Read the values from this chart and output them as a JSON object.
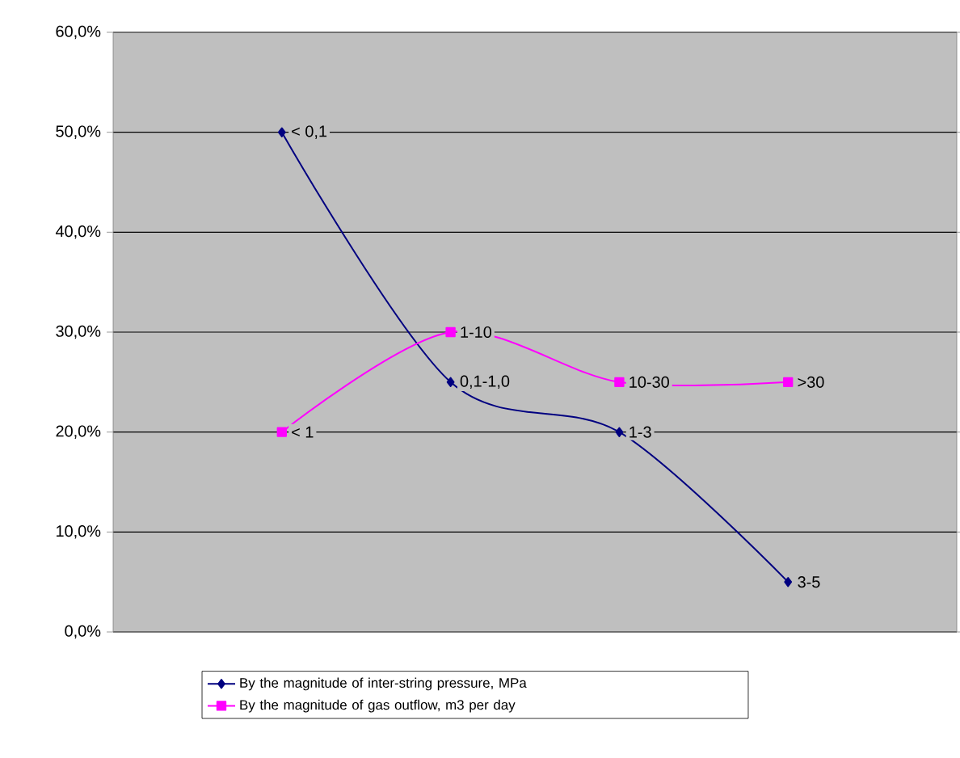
{
  "chart_data": {
    "type": "line",
    "categories": [
      null,
      null,
      null,
      null,
      null,
      null
    ],
    "series": [
      {
        "name": "By the magnitude of inter-string pressure, MPa",
        "color": "#000080",
        "marker": "diamond",
        "values": [
          null,
          50,
          25,
          20,
          5,
          null
        ],
        "value_labels": [
          null,
          "< 0,1",
          "0,1-1,0",
          "1-3",
          "3-5",
          null
        ]
      },
      {
        "name": "By the magnitude of gas outflow, m3 per day",
        "color": "#ff00ff",
        "marker": "square",
        "values": [
          null,
          20,
          30,
          25,
          25,
          null
        ],
        "value_labels": [
          null,
          "< 1",
          "1-10",
          "10-30",
          ">30",
          null
        ]
      }
    ],
    "ylim": [
      0,
      60
    ],
    "yticks": [
      {
        "value": 0,
        "label": "0,0%"
      },
      {
        "value": 10,
        "label": "10,0%"
      },
      {
        "value": 20,
        "label": "20,0%"
      },
      {
        "value": 30,
        "label": "30,0%"
      },
      {
        "value": 40,
        "label": "40,0%"
      },
      {
        "value": 50,
        "label": "50,0%"
      },
      {
        "value": 60,
        "label": "60,0%"
      }
    ],
    "grid": "y",
    "legend": "bottom"
  }
}
